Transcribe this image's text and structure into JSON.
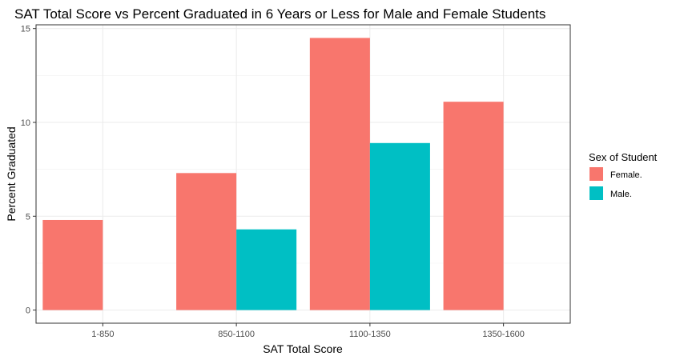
{
  "chart_data": {
    "type": "bar",
    "title": "SAT Total Score vs Percent Graduated in 6 Years or Less for Male and Female Students",
    "xlabel": "SAT Total Score",
    "ylabel": "Percent Graduated",
    "categories": [
      "1-850",
      "850-1100",
      "1100-1350",
      "1350-1600"
    ],
    "series": [
      {
        "name": "Female.",
        "color": "#F8766D",
        "values": [
          4.8,
          7.3,
          14.5,
          11.1
        ]
      },
      {
        "name": "Male.",
        "color": "#00BFC4",
        "values": [
          null,
          4.3,
          8.9,
          null
        ]
      }
    ],
    "ylim": [
      -0.7,
      15.2
    ],
    "yticks": [
      0,
      5,
      10,
      15
    ],
    "grid": true,
    "legend": {
      "title": "Sex of Student",
      "position": "right"
    }
  }
}
